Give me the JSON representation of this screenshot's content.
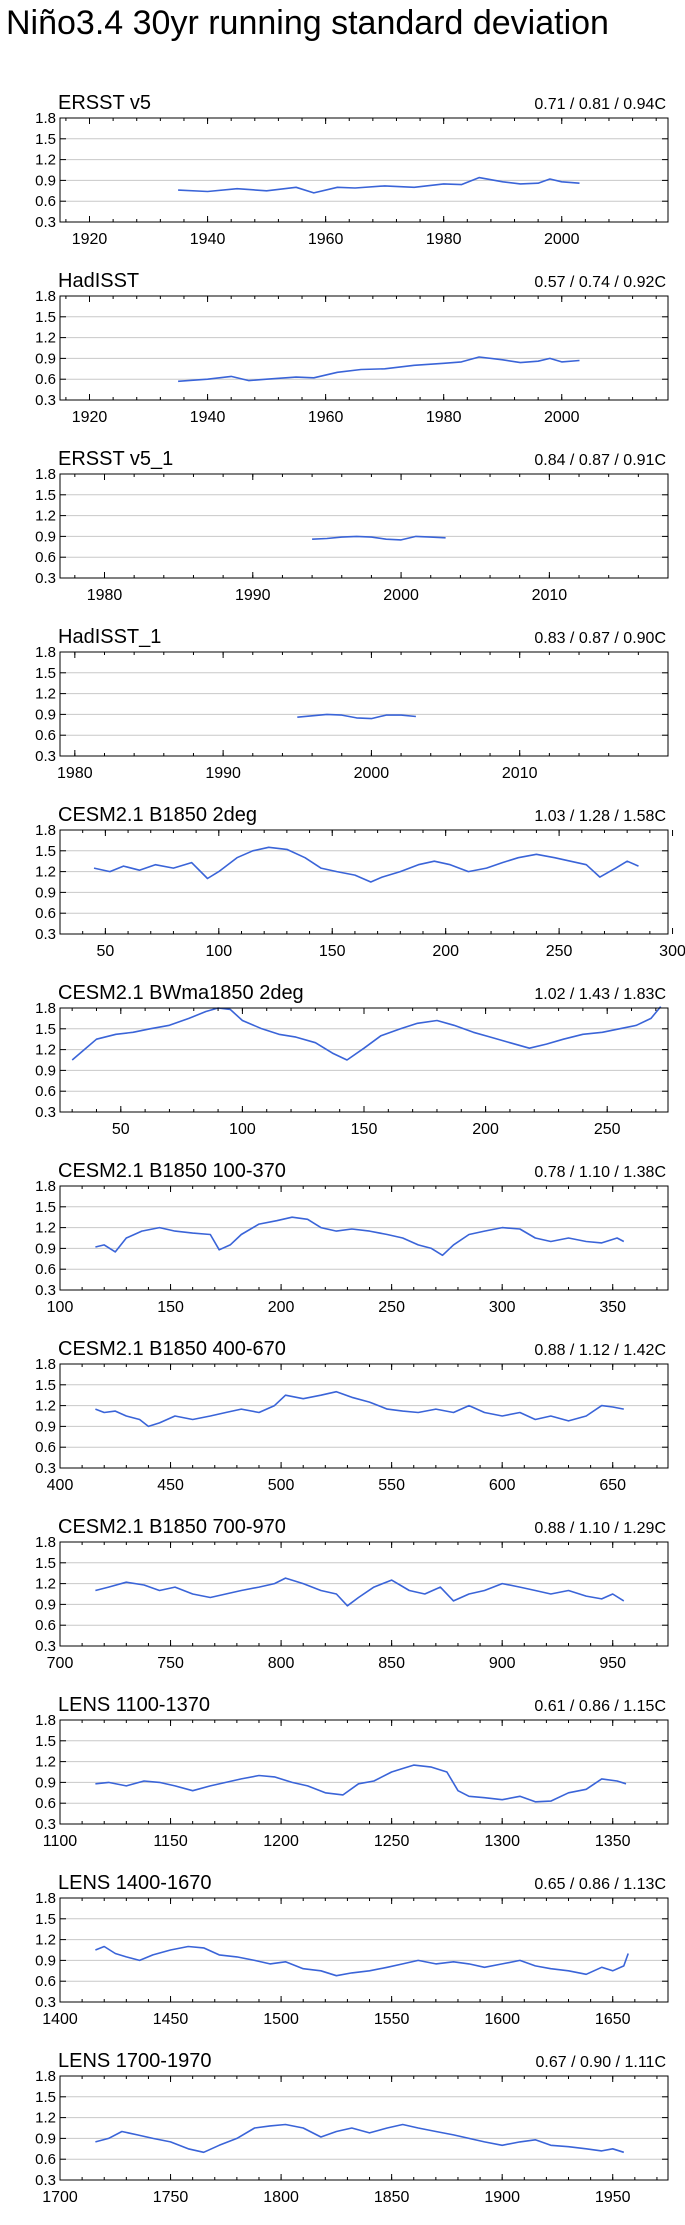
{
  "title": "Niño3.4 30yr running standard deviation",
  "colors": {
    "line": "#3a64d8",
    "grid": "#c8c8c8",
    "axis": "#000000"
  },
  "chart_data": [
    {
      "type": "line",
      "title": "ERSST v5",
      "stats": "0.71 / 0.81 / 0.94C",
      "xlim": [
        1915,
        2018
      ],
      "xticks": [
        1920,
        1940,
        1960,
        1980,
        2000
      ],
      "ylim": [
        0.3,
        1.8
      ],
      "yticks": [
        "0.3",
        "0.6",
        "0.9",
        "1.2",
        "1.5",
        "1.8"
      ],
      "series": [
        {
          "name": "ERSST v5",
          "x": [
            1935,
            1940,
            1945,
            1950,
            1955,
            1958,
            1962,
            1965,
            1970,
            1975,
            1980,
            1983,
            1986,
            1990,
            1993,
            1996,
            1998,
            2000,
            2003
          ],
          "y": [
            0.76,
            0.74,
            0.78,
            0.75,
            0.8,
            0.72,
            0.8,
            0.79,
            0.82,
            0.8,
            0.85,
            0.84,
            0.94,
            0.88,
            0.85,
            0.86,
            0.92,
            0.88,
            0.86
          ]
        }
      ]
    },
    {
      "type": "line",
      "title": "HadISST",
      "stats": "0.57 / 0.74 / 0.92C",
      "xlim": [
        1915,
        2018
      ],
      "xticks": [
        1920,
        1940,
        1960,
        1980,
        2000
      ],
      "ylim": [
        0.3,
        1.8
      ],
      "yticks": [
        "0.3",
        "0.6",
        "0.9",
        "1.2",
        "1.5",
        "1.8"
      ],
      "series": [
        {
          "name": "HadISST",
          "x": [
            1935,
            1940,
            1944,
            1947,
            1950,
            1955,
            1958,
            1962,
            1966,
            1970,
            1975,
            1980,
            1983,
            1986,
            1990,
            1993,
            1996,
            1998,
            2000,
            2003
          ],
          "y": [
            0.57,
            0.6,
            0.64,
            0.58,
            0.6,
            0.63,
            0.62,
            0.7,
            0.74,
            0.75,
            0.8,
            0.83,
            0.85,
            0.92,
            0.88,
            0.84,
            0.86,
            0.9,
            0.85,
            0.87
          ]
        }
      ]
    },
    {
      "type": "line",
      "title": "ERSST v5_1",
      "stats": "0.84 / 0.87 / 0.91C",
      "xlim": [
        1977,
        2018
      ],
      "xticks": [
        1980,
        1990,
        2000,
        2010
      ],
      "ylim": [
        0.3,
        1.8
      ],
      "yticks": [
        "0.3",
        "0.6",
        "0.9",
        "1.2",
        "1.5",
        "1.8"
      ],
      "series": [
        {
          "name": "ERSST v5_1",
          "x": [
            1994,
            1995,
            1996,
            1997,
            1998,
            1999,
            2000,
            2001,
            2002,
            2003
          ],
          "y": [
            0.86,
            0.87,
            0.89,
            0.9,
            0.89,
            0.86,
            0.85,
            0.9,
            0.89,
            0.88
          ]
        }
      ]
    },
    {
      "type": "line",
      "title": "HadISST_1",
      "stats": "0.83 / 0.87 / 0.90C",
      "xlim": [
        1979,
        2020
      ],
      "xticks": [
        1980,
        1990,
        2000,
        2010
      ],
      "ylim": [
        0.3,
        1.8
      ],
      "yticks": [
        "0.3",
        "0.6",
        "0.9",
        "1.2",
        "1.5",
        "1.8"
      ],
      "series": [
        {
          "name": "HadISST_1",
          "x": [
            1995,
            1996,
            1997,
            1998,
            1999,
            2000,
            2001,
            2002,
            2003
          ],
          "y": [
            0.86,
            0.88,
            0.9,
            0.89,
            0.85,
            0.84,
            0.89,
            0.89,
            0.87
          ]
        }
      ]
    },
    {
      "type": "line",
      "title": "CESM2.1 B1850 2deg",
      "stats": "1.03 / 1.28 / 1.58C",
      "xlim": [
        30,
        298
      ],
      "xticks": [
        50,
        100,
        150,
        200,
        250,
        300
      ],
      "ylim": [
        0.3,
        1.8
      ],
      "yticks": [
        "0.3",
        "0.6",
        "0.9",
        "1.2",
        "1.5",
        "1.8"
      ],
      "series": [
        {
          "name": "CESM2.1 B1850 2deg",
          "x": [
            45,
            52,
            58,
            65,
            72,
            80,
            88,
            95,
            100,
            108,
            115,
            122,
            130,
            138,
            145,
            152,
            160,
            167,
            172,
            180,
            188,
            195,
            202,
            210,
            218,
            225,
            232,
            240,
            248,
            255,
            262,
            268,
            275,
            280,
            285
          ],
          "y": [
            1.25,
            1.2,
            1.28,
            1.22,
            1.3,
            1.25,
            1.33,
            1.1,
            1.2,
            1.4,
            1.5,
            1.55,
            1.52,
            1.4,
            1.25,
            1.2,
            1.15,
            1.05,
            1.12,
            1.2,
            1.3,
            1.35,
            1.3,
            1.2,
            1.25,
            1.33,
            1.4,
            1.45,
            1.4,
            1.35,
            1.3,
            1.12,
            1.25,
            1.35,
            1.28
          ]
        }
      ]
    },
    {
      "type": "line",
      "title": "CESM2.1 BWma1850 2deg",
      "stats": "1.02 / 1.43 / 1.83C",
      "xlim": [
        25,
        275
      ],
      "xticks": [
        50,
        100,
        150,
        200,
        250
      ],
      "ylim": [
        0.3,
        1.8
      ],
      "yticks": [
        "0.3",
        "0.6",
        "0.9",
        "1.2",
        "1.5",
        "1.8"
      ],
      "series": [
        {
          "name": "CESM2.1 BWma1850 2deg",
          "x": [
            30,
            35,
            40,
            48,
            55,
            62,
            70,
            78,
            85,
            90,
            95,
            100,
            108,
            115,
            122,
            130,
            137,
            143,
            150,
            157,
            165,
            172,
            180,
            187,
            195,
            202,
            210,
            218,
            225,
            232,
            240,
            248,
            255,
            262,
            268,
            272
          ],
          "y": [
            1.05,
            1.2,
            1.35,
            1.42,
            1.45,
            1.5,
            1.55,
            1.65,
            1.75,
            1.8,
            1.78,
            1.62,
            1.5,
            1.42,
            1.38,
            1.3,
            1.15,
            1.05,
            1.22,
            1.4,
            1.5,
            1.58,
            1.62,
            1.55,
            1.45,
            1.38,
            1.3,
            1.22,
            1.28,
            1.35,
            1.42,
            1.45,
            1.5,
            1.55,
            1.65,
            1.82
          ]
        }
      ]
    },
    {
      "type": "line",
      "title": "CESM2.1 B1850 100-370",
      "stats": "0.78 / 1.10 / 1.38C",
      "xlim": [
        100,
        375
      ],
      "xticks": [
        100,
        150,
        200,
        250,
        300,
        350
      ],
      "ylim": [
        0.3,
        1.8
      ],
      "yticks": [
        "0.3",
        "0.6",
        "0.9",
        "1.2",
        "1.5",
        "1.8"
      ],
      "series": [
        {
          "name": "CESM2.1 B1850 100-370",
          "x": [
            116,
            120,
            125,
            130,
            137,
            145,
            152,
            160,
            168,
            172,
            177,
            182,
            190,
            198,
            205,
            212,
            218,
            225,
            232,
            240,
            248,
            255,
            262,
            268,
            273,
            278,
            285,
            292,
            300,
            308,
            315,
            322,
            330,
            338,
            345,
            352,
            355
          ],
          "y": [
            0.92,
            0.95,
            0.85,
            1.05,
            1.15,
            1.2,
            1.15,
            1.12,
            1.1,
            0.88,
            0.95,
            1.1,
            1.25,
            1.3,
            1.35,
            1.32,
            1.2,
            1.15,
            1.18,
            1.15,
            1.1,
            1.05,
            0.95,
            0.9,
            0.8,
            0.95,
            1.1,
            1.15,
            1.2,
            1.18,
            1.05,
            1.0,
            1.05,
            1.0,
            0.98,
            1.05,
            1.0
          ]
        }
      ]
    },
    {
      "type": "line",
      "title": "CESM2.1 B1850 400-670",
      "stats": "0.88 / 1.12 / 1.42C",
      "xlim": [
        400,
        675
      ],
      "xticks": [
        400,
        450,
        500,
        550,
        600,
        650
      ],
      "ylim": [
        0.3,
        1.8
      ],
      "yticks": [
        "0.3",
        "0.6",
        "0.9",
        "1.2",
        "1.5",
        "1.8"
      ],
      "series": [
        {
          "name": "CESM2.1 B1850 400-670",
          "x": [
            416,
            420,
            425,
            430,
            436,
            440,
            445,
            452,
            460,
            468,
            475,
            482,
            490,
            497,
            502,
            510,
            518,
            525,
            532,
            540,
            548,
            555,
            562,
            570,
            578,
            585,
            592,
            600,
            608,
            615,
            622,
            630,
            638,
            645,
            650,
            655
          ],
          "y": [
            1.15,
            1.1,
            1.12,
            1.05,
            1.0,
            0.9,
            0.95,
            1.05,
            1.0,
            1.05,
            1.1,
            1.15,
            1.1,
            1.2,
            1.35,
            1.3,
            1.35,
            1.4,
            1.32,
            1.25,
            1.15,
            1.12,
            1.1,
            1.15,
            1.1,
            1.2,
            1.1,
            1.05,
            1.1,
            1.0,
            1.05,
            0.98,
            1.05,
            1.2,
            1.18,
            1.15
          ]
        }
      ]
    },
    {
      "type": "line",
      "title": "CESM2.1 B1850 700-970",
      "stats": "0.88 / 1.10 / 1.29C",
      "xlim": [
        700,
        975
      ],
      "xticks": [
        700,
        750,
        800,
        850,
        900,
        950
      ],
      "ylim": [
        0.3,
        1.8
      ],
      "yticks": [
        "0.3",
        "0.6",
        "0.9",
        "1.2",
        "1.5",
        "1.8"
      ],
      "series": [
        {
          "name": "CESM2.1 B1850 700-970",
          "x": [
            716,
            722,
            730,
            738,
            745,
            752,
            760,
            768,
            775,
            782,
            790,
            797,
            802,
            810,
            818,
            825,
            830,
            835,
            842,
            850,
            858,
            865,
            872,
            878,
            885,
            892,
            900,
            908,
            915,
            922,
            930,
            938,
            945,
            950,
            955
          ],
          "y": [
            1.1,
            1.15,
            1.22,
            1.18,
            1.1,
            1.15,
            1.05,
            1.0,
            1.05,
            1.1,
            1.15,
            1.2,
            1.28,
            1.2,
            1.1,
            1.05,
            0.88,
            1.0,
            1.15,
            1.25,
            1.1,
            1.05,
            1.15,
            0.95,
            1.05,
            1.1,
            1.2,
            1.15,
            1.1,
            1.05,
            1.1,
            1.02,
            0.98,
            1.05,
            0.95
          ]
        }
      ]
    },
    {
      "type": "line",
      "title": "LENS 1100-1370",
      "stats": "0.61 / 0.86 / 1.15C",
      "xlim": [
        1100,
        1375
      ],
      "xticks": [
        1100,
        1150,
        1200,
        1250,
        1300,
        1350
      ],
      "ylim": [
        0.3,
        1.8
      ],
      "yticks": [
        "0.3",
        "0.6",
        "0.9",
        "1.2",
        "1.5",
        "1.8"
      ],
      "series": [
        {
          "name": "LENS 1100-1370",
          "x": [
            1116,
            1122,
            1130,
            1138,
            1145,
            1152,
            1160,
            1168,
            1175,
            1182,
            1190,
            1197,
            1205,
            1212,
            1220,
            1228,
            1235,
            1242,
            1250,
            1255,
            1260,
            1268,
            1275,
            1280,
            1285,
            1292,
            1300,
            1308,
            1315,
            1322,
            1330,
            1338,
            1345,
            1352,
            1356
          ],
          "y": [
            0.88,
            0.9,
            0.85,
            0.92,
            0.9,
            0.85,
            0.78,
            0.85,
            0.9,
            0.95,
            1.0,
            0.98,
            0.9,
            0.85,
            0.75,
            0.72,
            0.88,
            0.92,
            1.05,
            1.1,
            1.15,
            1.12,
            1.05,
            0.78,
            0.7,
            0.68,
            0.65,
            0.7,
            0.62,
            0.63,
            0.75,
            0.8,
            0.95,
            0.92,
            0.88
          ]
        }
      ]
    },
    {
      "type": "line",
      "title": "LENS 1400-1670",
      "stats": "0.65 / 0.86 / 1.13C",
      "xlim": [
        1400,
        1675
      ],
      "xticks": [
        1400,
        1450,
        1500,
        1550,
        1600,
        1650
      ],
      "ylim": [
        0.3,
        1.8
      ],
      "yticks": [
        "0.3",
        "0.6",
        "0.9",
        "1.2",
        "1.5",
        "1.8"
      ],
      "series": [
        {
          "name": "LENS 1400-1670",
          "x": [
            1416,
            1420,
            1425,
            1430,
            1436,
            1442,
            1450,
            1458,
            1465,
            1472,
            1480,
            1488,
            1495,
            1502,
            1510,
            1518,
            1525,
            1532,
            1540,
            1548,
            1555,
            1562,
            1570,
            1578,
            1585,
            1592,
            1600,
            1608,
            1615,
            1622,
            1630,
            1638,
            1645,
            1650,
            1655,
            1657
          ],
          "y": [
            1.05,
            1.1,
            1.0,
            0.95,
            0.9,
            0.98,
            1.05,
            1.1,
            1.08,
            0.98,
            0.95,
            0.9,
            0.85,
            0.88,
            0.78,
            0.75,
            0.68,
            0.72,
            0.75,
            0.8,
            0.85,
            0.9,
            0.85,
            0.88,
            0.85,
            0.8,
            0.85,
            0.9,
            0.82,
            0.78,
            0.75,
            0.7,
            0.8,
            0.75,
            0.82,
            1.0
          ]
        }
      ]
    },
    {
      "type": "line",
      "title": "LENS 1700-1970",
      "stats": "0.67 / 0.90 / 1.11C",
      "xlim": [
        1700,
        1975
      ],
      "xticks": [
        1700,
        1750,
        1800,
        1850,
        1900,
        1950
      ],
      "ylim": [
        0.3,
        1.8
      ],
      "yticks": [
        "0.3",
        "0.6",
        "0.9",
        "1.2",
        "1.5",
        "1.8"
      ],
      "series": [
        {
          "name": "LENS 1700-1970",
          "x": [
            1716,
            1722,
            1728,
            1735,
            1742,
            1750,
            1758,
            1765,
            1772,
            1780,
            1788,
            1795,
            1802,
            1810,
            1818,
            1825,
            1832,
            1840,
            1848,
            1855,
            1862,
            1870,
            1878,
            1885,
            1892,
            1900,
            1908,
            1915,
            1922,
            1930,
            1938,
            1945,
            1950,
            1955
          ],
          "y": [
            0.85,
            0.9,
            1.0,
            0.95,
            0.9,
            0.85,
            0.75,
            0.7,
            0.8,
            0.9,
            1.05,
            1.08,
            1.1,
            1.05,
            0.92,
            1.0,
            1.05,
            0.98,
            1.05,
            1.1,
            1.05,
            1.0,
            0.95,
            0.9,
            0.85,
            0.8,
            0.85,
            0.88,
            0.8,
            0.78,
            0.75,
            0.72,
            0.75,
            0.7
          ]
        }
      ]
    }
  ]
}
